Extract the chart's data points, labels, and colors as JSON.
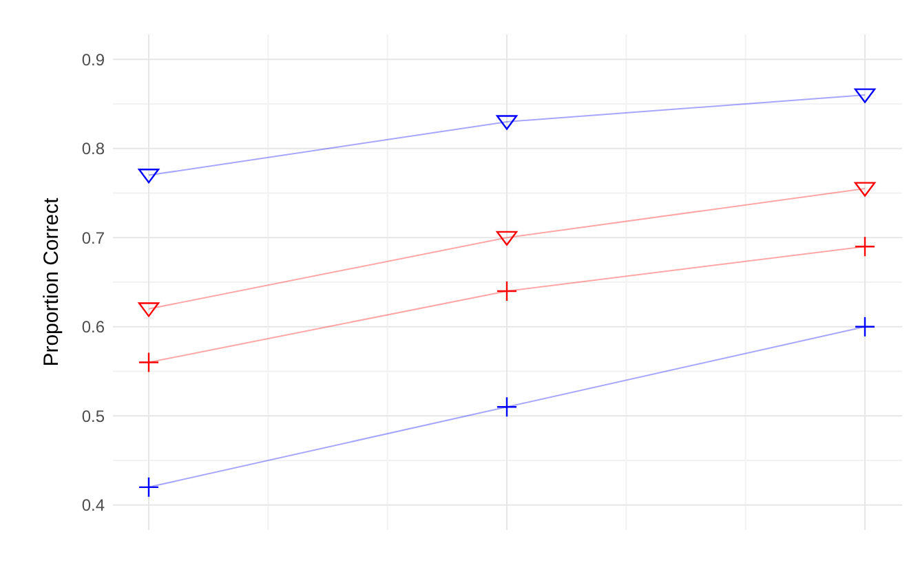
{
  "chart_data": {
    "type": "line",
    "ylabel": "Proportion Correct",
    "categories": [
      null,
      null,
      null
    ],
    "series": [
      {
        "color": "#0000ff",
        "values": [
          0.77,
          0.83,
          0.86
        ],
        "marker": "triangle"
      },
      {
        "color": "#ff0000",
        "values": [
          0.62,
          0.7,
          0.755
        ],
        "marker": "triangle"
      },
      {
        "color": "#ff0000",
        "values": [
          0.56,
          0.64,
          0.69
        ],
        "marker": "cross"
      },
      {
        "color": "#0000ff",
        "values": [
          0.42,
          0.51,
          0.6
        ],
        "marker": "cross"
      }
    ],
    "ylim": [
      0.372,
      0.928
    ],
    "yticks": [
      0.4,
      0.5,
      0.6,
      0.7,
      0.8,
      0.9
    ],
    "grid": true
  }
}
